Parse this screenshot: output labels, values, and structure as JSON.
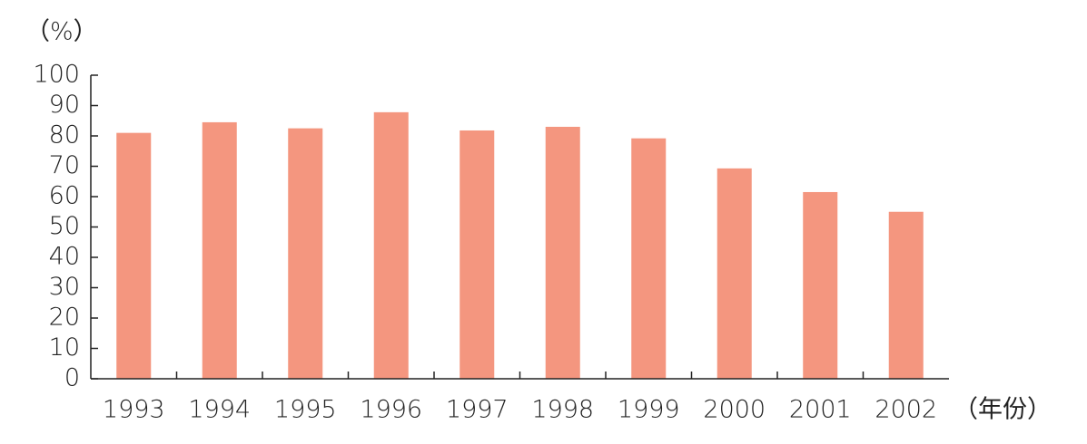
{
  "chart_data": {
    "type": "bar",
    "y_label": "（%）",
    "x_label": "（年份）",
    "categories": [
      "1993",
      "1994",
      "1995",
      "1996",
      "1997",
      "1998",
      "1999",
      "2000",
      "2001",
      "2002"
    ],
    "values": [
      81,
      84.5,
      82.5,
      87.8,
      81.8,
      83,
      79.2,
      69.3,
      61.5,
      55
    ],
    "color": "#f4967f",
    "ylim": [
      0,
      100
    ],
    "yticks": [
      0,
      10,
      20,
      30,
      40,
      50,
      60,
      70,
      80,
      90,
      100
    ],
    "grid": false
  }
}
